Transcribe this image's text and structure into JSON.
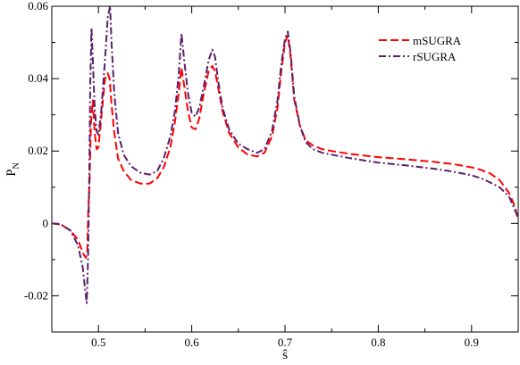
{
  "chart_data": {
    "type": "line",
    "title": "",
    "xlabel": "ŝ",
    "ylabel": "P",
    "ylabel_subscript": "N",
    "xlim": [
      0.45,
      0.95
    ],
    "ylim": [
      -0.03,
      0.06
    ],
    "x_ticks": [
      0.5,
      0.6,
      0.7,
      0.8,
      0.9
    ],
    "x_tick_labels": [
      "0.5",
      "0.6",
      "0.7",
      "0.8",
      "0.9"
    ],
    "y_ticks": [
      -0.02,
      0,
      0.02,
      0.04,
      0.06
    ],
    "y_tick_labels": [
      "-0.02",
      "0",
      "0.02",
      "0.04",
      "0.06"
    ],
    "grid": false,
    "legend": {
      "placement": "top-right"
    },
    "series": [
      {
        "name": "mSUGRA",
        "color": "#ff0000",
        "dash": "dashed",
        "x": [
          0.45,
          0.46,
          0.47,
          0.478,
          0.484,
          0.4865,
          0.488,
          0.489,
          0.4905,
          0.492,
          0.494,
          0.496,
          0.498,
          0.5,
          0.503,
          0.507,
          0.51,
          0.512,
          0.514,
          0.517,
          0.521,
          0.527,
          0.535,
          0.545,
          0.555,
          0.563,
          0.57,
          0.577,
          0.582,
          0.586,
          0.589,
          0.592,
          0.596,
          0.6,
          0.604,
          0.608,
          0.613,
          0.618,
          0.622,
          0.625,
          0.628,
          0.633,
          0.64,
          0.65,
          0.66,
          0.67,
          0.678,
          0.686,
          0.692,
          0.696,
          0.7,
          0.703,
          0.706,
          0.71,
          0.716,
          0.722,
          0.73,
          0.74,
          0.75,
          0.77,
          0.8,
          0.83,
          0.86,
          0.88,
          0.9,
          0.91,
          0.92,
          0.93,
          0.94,
          0.946,
          0.95
        ],
        "y": [
          0.0,
          -0.0003,
          -0.002,
          -0.0045,
          -0.0085,
          -0.0095,
          -0.008,
          0.003,
          0.012,
          0.028,
          0.034,
          0.025,
          0.0205,
          0.021,
          0.029,
          0.04,
          0.0415,
          0.04,
          0.033,
          0.025,
          0.018,
          0.0145,
          0.012,
          0.011,
          0.011,
          0.0125,
          0.0155,
          0.021,
          0.028,
          0.036,
          0.043,
          0.038,
          0.031,
          0.0265,
          0.026,
          0.029,
          0.036,
          0.042,
          0.0435,
          0.042,
          0.038,
          0.031,
          0.025,
          0.021,
          0.019,
          0.0185,
          0.0195,
          0.024,
          0.032,
          0.042,
          0.05,
          0.052,
          0.046,
          0.034,
          0.027,
          0.023,
          0.0215,
          0.0205,
          0.02,
          0.0192,
          0.0183,
          0.0177,
          0.017,
          0.0164,
          0.0155,
          0.0148,
          0.0138,
          0.012,
          0.0085,
          0.005,
          0.001
        ]
      },
      {
        "name": "rSUGRA",
        "color": "#5a1f6b",
        "dash": "dash-dot",
        "x": [
          0.45,
          0.46,
          0.47,
          0.478,
          0.483,
          0.486,
          0.4875,
          0.4888,
          0.49,
          0.4912,
          0.4925,
          0.494,
          0.496,
          0.498,
          0.5,
          0.503,
          0.507,
          0.51,
          0.5125,
          0.514,
          0.517,
          0.521,
          0.527,
          0.535,
          0.545,
          0.555,
          0.563,
          0.57,
          0.577,
          0.582,
          0.586,
          0.589,
          0.592,
          0.596,
          0.6,
          0.604,
          0.608,
          0.613,
          0.618,
          0.622,
          0.625,
          0.628,
          0.633,
          0.64,
          0.65,
          0.66,
          0.67,
          0.678,
          0.686,
          0.692,
          0.696,
          0.7,
          0.703,
          0.706,
          0.71,
          0.716,
          0.722,
          0.73,
          0.74,
          0.75,
          0.77,
          0.8,
          0.83,
          0.86,
          0.88,
          0.9,
          0.91,
          0.92,
          0.93,
          0.94,
          0.946,
          0.95
        ],
        "y": [
          0.0,
          -0.0003,
          -0.002,
          -0.006,
          -0.012,
          -0.019,
          -0.022,
          -0.01,
          0.01,
          0.038,
          0.054,
          0.045,
          0.032,
          0.0255,
          0.0245,
          0.031,
          0.045,
          0.057,
          0.06,
          0.05,
          0.036,
          0.025,
          0.019,
          0.0158,
          0.014,
          0.0135,
          0.0145,
          0.018,
          0.024,
          0.031,
          0.041,
          0.0525,
          0.045,
          0.036,
          0.0305,
          0.0295,
          0.032,
          0.038,
          0.045,
          0.048,
          0.046,
          0.04,
          0.032,
          0.026,
          0.022,
          0.0205,
          0.0195,
          0.0205,
          0.0255,
          0.034,
          0.044,
          0.051,
          0.053,
          0.047,
          0.035,
          0.027,
          0.0225,
          0.0205,
          0.0195,
          0.019,
          0.018,
          0.0168,
          0.016,
          0.0151,
          0.0143,
          0.0133,
          0.0125,
          0.0113,
          0.01,
          0.0075,
          0.004,
          0.0015
        ]
      }
    ]
  }
}
